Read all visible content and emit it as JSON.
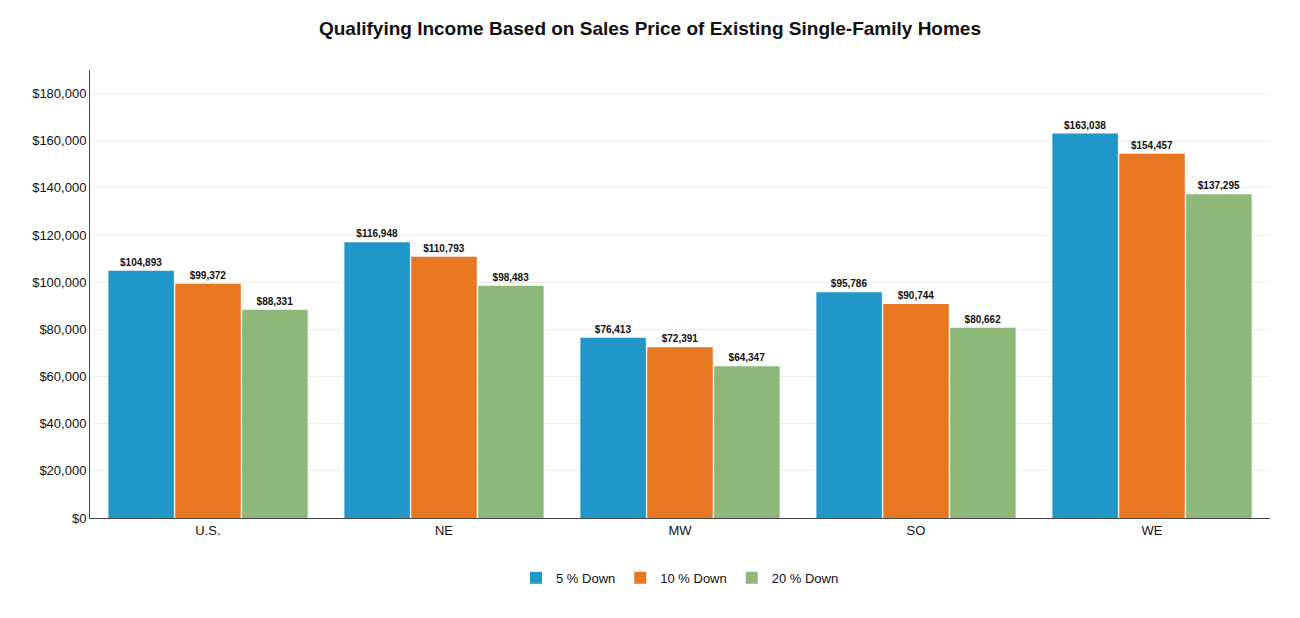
{
  "chart_data": {
    "type": "bar",
    "title": "Qualifying Income Based on Sales Price of Existing Single-Family Homes",
    "categories": [
      "U.S.",
      "NE",
      "MW",
      "SO",
      "WE"
    ],
    "series": [
      {
        "name": "5 % Down",
        "color": "#2196c8",
        "values": [
          104893,
          116948,
          76413,
          95786,
          163038
        ],
        "value_labels": [
          "$104,893",
          "$116,948",
          "$76,413",
          "$95,786",
          "$163,038"
        ]
      },
      {
        "name": "10 % Down",
        "color": "#e87722",
        "values": [
          99372,
          110793,
          72391,
          90744,
          154457
        ],
        "value_labels": [
          "$99,372",
          "$110,793",
          "$72,391",
          "$90,744",
          "$154,457"
        ]
      },
      {
        "name": "20 % Down",
        "color": "#8db87a",
        "values": [
          88331,
          98483,
          64347,
          80662,
          137295
        ],
        "value_labels": [
          "$88,331",
          "$98,483",
          "$64,347",
          "$80,662",
          "$137,295"
        ]
      }
    ],
    "ylim": [
      0,
      190000
    ],
    "yticks": [
      {
        "value": 0,
        "label": "$0"
      },
      {
        "value": 20000,
        "label": "$20,000"
      },
      {
        "value": 40000,
        "label": "$40,000"
      },
      {
        "value": 60000,
        "label": "$60,000"
      },
      {
        "value": 80000,
        "label": "$80,000"
      },
      {
        "value": 100000,
        "label": "$100,000"
      },
      {
        "value": 120000,
        "label": "$120,000"
      },
      {
        "value": 140000,
        "label": "$140,000"
      },
      {
        "value": 160000,
        "label": "$160,000"
      },
      {
        "value": 180000,
        "label": "$180,000"
      }
    ],
    "grid": true,
    "legend": "bottom",
    "data_labels": true
  }
}
